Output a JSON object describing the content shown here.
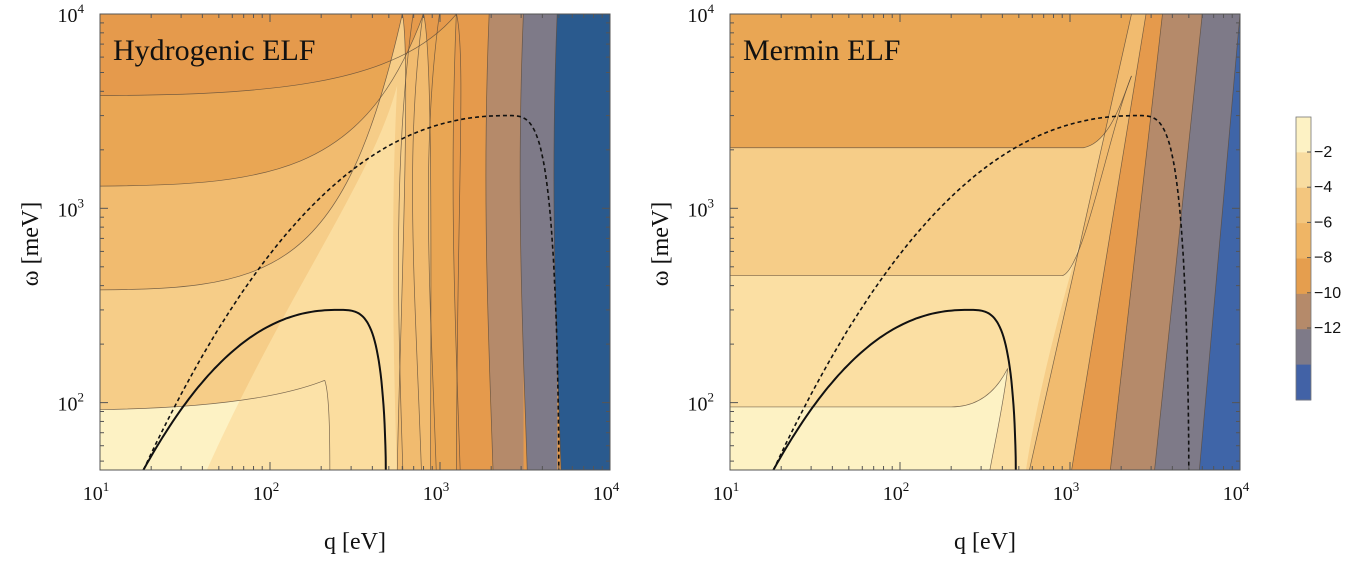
{
  "chart_data": [
    {
      "type": "contour",
      "title": "Hydrogenic ELF",
      "xlabel": "q [eV]",
      "ylabel": "ω [meV]",
      "x_scale": "log",
      "y_scale": "log",
      "xlim": [
        10,
        10000
      ],
      "ylim": [
        45,
        10000
      ],
      "x_ticks": [
        {
          "base": "10",
          "exp": "1"
        },
        {
          "base": "10",
          "exp": "2"
        },
        {
          "base": "10",
          "exp": "3"
        },
        {
          "base": "10",
          "exp": "4"
        }
      ],
      "y_ticks": [
        {
          "base": "10",
          "exp": "2"
        },
        {
          "base": "10",
          "exp": "3"
        },
        {
          "base": "10",
          "exp": "4"
        }
      ],
      "contour_boundaries": [
        {
          "level": -1,
          "points": [
            [
              10,
              45
            ],
            [
              10,
              45
            ]
          ]
        },
        {
          "level": -2,
          "horizontal_at_w": 92,
          "vertical_at_q": 230
        },
        {
          "level": -3,
          "horizontal_at_w": 380,
          "vertical_at_q": 550
        },
        {
          "level": -4,
          "horizontal_at_w": 1300,
          "vertical_at_q": 800
        },
        {
          "level": -5,
          "horizontal_at_w": 3800,
          "vertical_at_q": 1250
        }
      ],
      "vertical_band_edges_q": [
        1250,
        2000,
        3000,
        4000,
        5000
      ],
      "solid_curve": {
        "peak_q": 250,
        "peak_w": 300,
        "start_q": 18,
        "start_w": 45,
        "end_q": 480,
        "end_w": 45
      },
      "dashed_curve": {
        "peak_q": 2500,
        "peak_w": 3000,
        "start_q": 18,
        "start_w": 45,
        "end_q": 5000,
        "end_w": 45
      }
    },
    {
      "type": "contour",
      "title": "Mermin ELF",
      "xlabel": "q [eV]",
      "ylabel": "ω [meV]",
      "x_scale": "log",
      "y_scale": "log",
      "xlim": [
        10,
        10000
      ],
      "ylim": [
        45,
        10000
      ],
      "x_ticks": [
        {
          "base": "10",
          "exp": "1"
        },
        {
          "base": "10",
          "exp": "2"
        },
        {
          "base": "10",
          "exp": "3"
        },
        {
          "base": "10",
          "exp": "4"
        }
      ],
      "y_ticks": [
        {
          "base": "10",
          "exp": "2"
        },
        {
          "base": "10",
          "exp": "3"
        },
        {
          "base": "10",
          "exp": "4"
        }
      ],
      "horizontal_levels_w": [
        95,
        450,
        2050
      ],
      "solid_curve": {
        "peak_q": 250,
        "peak_w": 300,
        "start_q": 18,
        "start_w": 45,
        "end_q": 480,
        "end_w": 45
      },
      "dashed_curve": {
        "peak_q": 2500,
        "peak_w": 3000,
        "start_q": 18,
        "start_w": 45,
        "end_q": 5000,
        "end_w": 45
      }
    }
  ],
  "colorbar": {
    "labels": [
      "−2",
      "−4",
      "−6",
      "−8",
      "−10",
      "−12"
    ],
    "colors": [
      "#fdf2c4",
      "#f8dca0",
      "#f3c67e",
      "#efb565",
      "#e59e4e",
      "#b58a6a",
      "#7e7a88",
      "#4262a6"
    ]
  },
  "colors": {
    "c1": "#fdf2c4",
    "c2": "#fbdfa3",
    "c3": "#f6cd88",
    "c4": "#f1bb6f",
    "c5": "#e9a654",
    "c6": "#e59a4c",
    "c7": "#b58a6a",
    "c8": "#7e7a88",
    "c9": "#2a5a8e",
    "c9b": "#3f65a8"
  }
}
